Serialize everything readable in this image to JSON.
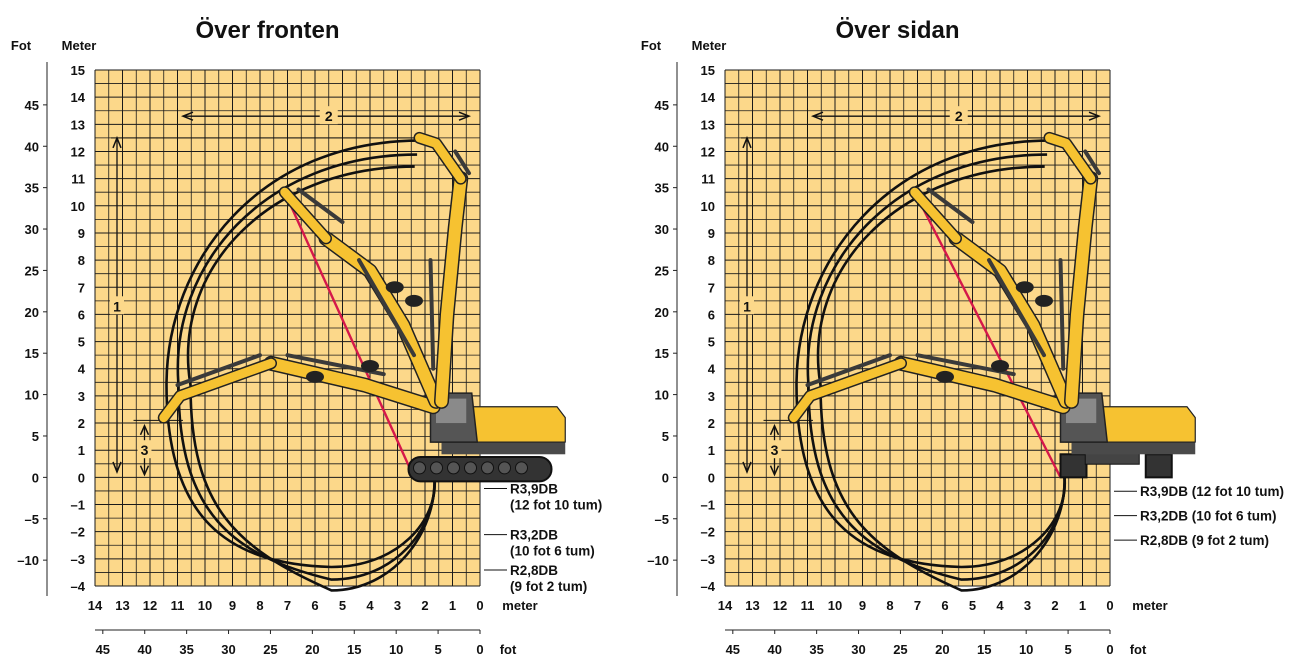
{
  "panels": [
    {
      "title": "Över fronten",
      "unit_ft_label": "Fot",
      "unit_m_label": "Meter",
      "meter_ticks_y": [
        "15",
        "14",
        "13",
        "12",
        "11",
        "10",
        "9",
        "8",
        "7",
        "6",
        "5",
        "4",
        "3",
        "2",
        "1",
        "0",
        "–1",
        "–2",
        "–3",
        "–4"
      ],
      "feet_ticks_y": [
        "45",
        "40",
        "35",
        "30",
        "25",
        "20",
        "15",
        "10",
        "5",
        "0",
        "–5",
        "–10"
      ],
      "meter_ticks_x": [
        "14",
        "13",
        "12",
        "11",
        "10",
        "9",
        "8",
        "7",
        "6",
        "5",
        "4",
        "3",
        "2",
        "1",
        "0"
      ],
      "meter_x_unit": "meter",
      "feet_ticks_x": [
        "45",
        "40",
        "35",
        "30",
        "25",
        "20",
        "15",
        "10",
        "5",
        "0"
      ],
      "feet_x_unit": "fot",
      "dim_labels": [
        "1",
        "2",
        "3"
      ],
      "legend": [
        {
          "line1": "R3,9DB",
          "line2": "(12 fot 10 tum)"
        },
        {
          "line1": "R3,2DB",
          "line2": "(10 fot 6 tum)"
        },
        {
          "line1": "R2,8DB",
          "line2": "(9 fot 2 tum)"
        }
      ],
      "undercarriage": "track-side"
    },
    {
      "title": "Över sidan",
      "unit_ft_label": "Fot",
      "unit_m_label": "Meter",
      "meter_ticks_y": [
        "15",
        "14",
        "13",
        "12",
        "11",
        "10",
        "9",
        "8",
        "7",
        "6",
        "5",
        "4",
        "3",
        "2",
        "1",
        "0",
        "–1",
        "–2",
        "–3",
        "–4"
      ],
      "feet_ticks_y": [
        "45",
        "40",
        "35",
        "30",
        "25",
        "20",
        "15",
        "10",
        "5",
        "0",
        "–5",
        "–10"
      ],
      "meter_ticks_x": [
        "14",
        "13",
        "12",
        "11",
        "10",
        "9",
        "8",
        "7",
        "6",
        "5",
        "4",
        "3",
        "2",
        "1",
        "0"
      ],
      "meter_x_unit": "meter",
      "feet_ticks_x": [
        "45",
        "40",
        "35",
        "30",
        "25",
        "20",
        "15",
        "10",
        "5",
        "0"
      ],
      "feet_x_unit": "fot",
      "dim_labels": [
        "1",
        "2",
        "3"
      ],
      "legend": [
        {
          "line1": "R3,9DB (12 fot 10 tum)"
        },
        {
          "line1": "R3,2DB (10 fot 6 tum)"
        },
        {
          "line1": "R2,8DB (9 fot 2 tum)"
        }
      ],
      "undercarriage": "track-front"
    }
  ],
  "colors": {
    "grid_fill": "#fcd88a",
    "grid_line": "#1a1a1a",
    "machine_yellow": "#f6c231",
    "machine_dark": "#3a3a3a",
    "reach_line": "#d5184a"
  }
}
